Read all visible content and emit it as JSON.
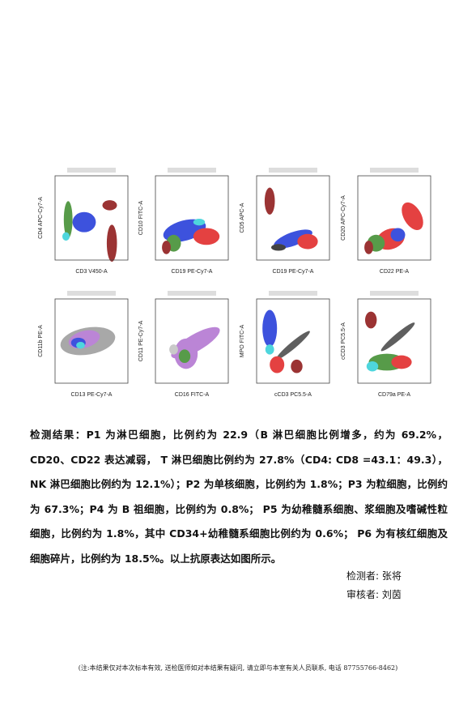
{
  "plots": [
    {
      "x_label": "CD3 V450-A",
      "y_label": "CD4 APC-Cy7-A"
    },
    {
      "x_label": "CD19 PE-Cy7-A",
      "y_label": "CD10 FITC-A"
    },
    {
      "x_label": "CD19 PE-Cy7-A",
      "y_label": "CD5 APC-A"
    },
    {
      "x_label": "CD22 PE-A",
      "y_label": "CD20 APC-Cy7-A"
    },
    {
      "x_label": "CD13 PE-Cy7-A",
      "y_label": "CD11b PE-A"
    },
    {
      "x_label": "CD16 FITC-A",
      "y_label": "CD11 PE-Cy7-A"
    },
    {
      "x_label": "cCD3 PC5.5-A",
      "y_label": "MPO FITC-A"
    },
    {
      "x_label": "CD79a PE-A",
      "y_label": "cCD3 PC5.5-A"
    }
  ],
  "result": "检测结果：P1 为淋巴细胞，比例约为 22.9（B 淋巴细胞比例增多，约为 69.2%，CD20、CD22 表达减弱， T 淋巴细胞比例约为 27.8%（CD4: CD8 =43.1：49.3），NK 淋巴细胞比例约为 12.1%）；P2 为单核细胞，比例约为 1.8%；P3 为粒细胞，比例约为 67.3%；P4 为 B 祖细胞，比例约为 0.8%； P5 为幼稚髓系细胞、浆细胞及嗜碱性粒细胞，比例约为 1.8%，其中 CD34+幼稚髓系细胞比例约为 0.6%； P6 为有核红细胞及细胞碎片，比例约为 18.5%。以上抗原表达如图所示。",
  "signatures": {
    "tester": "检测者: 张将",
    "reviewer": "审核者: 刘茵"
  },
  "footer": "(注:本结果仅对本次标本有效, 送检医师如对本结果有疑问, 请立即与本室有关人员联系, 电话 87755766-8462)"
}
